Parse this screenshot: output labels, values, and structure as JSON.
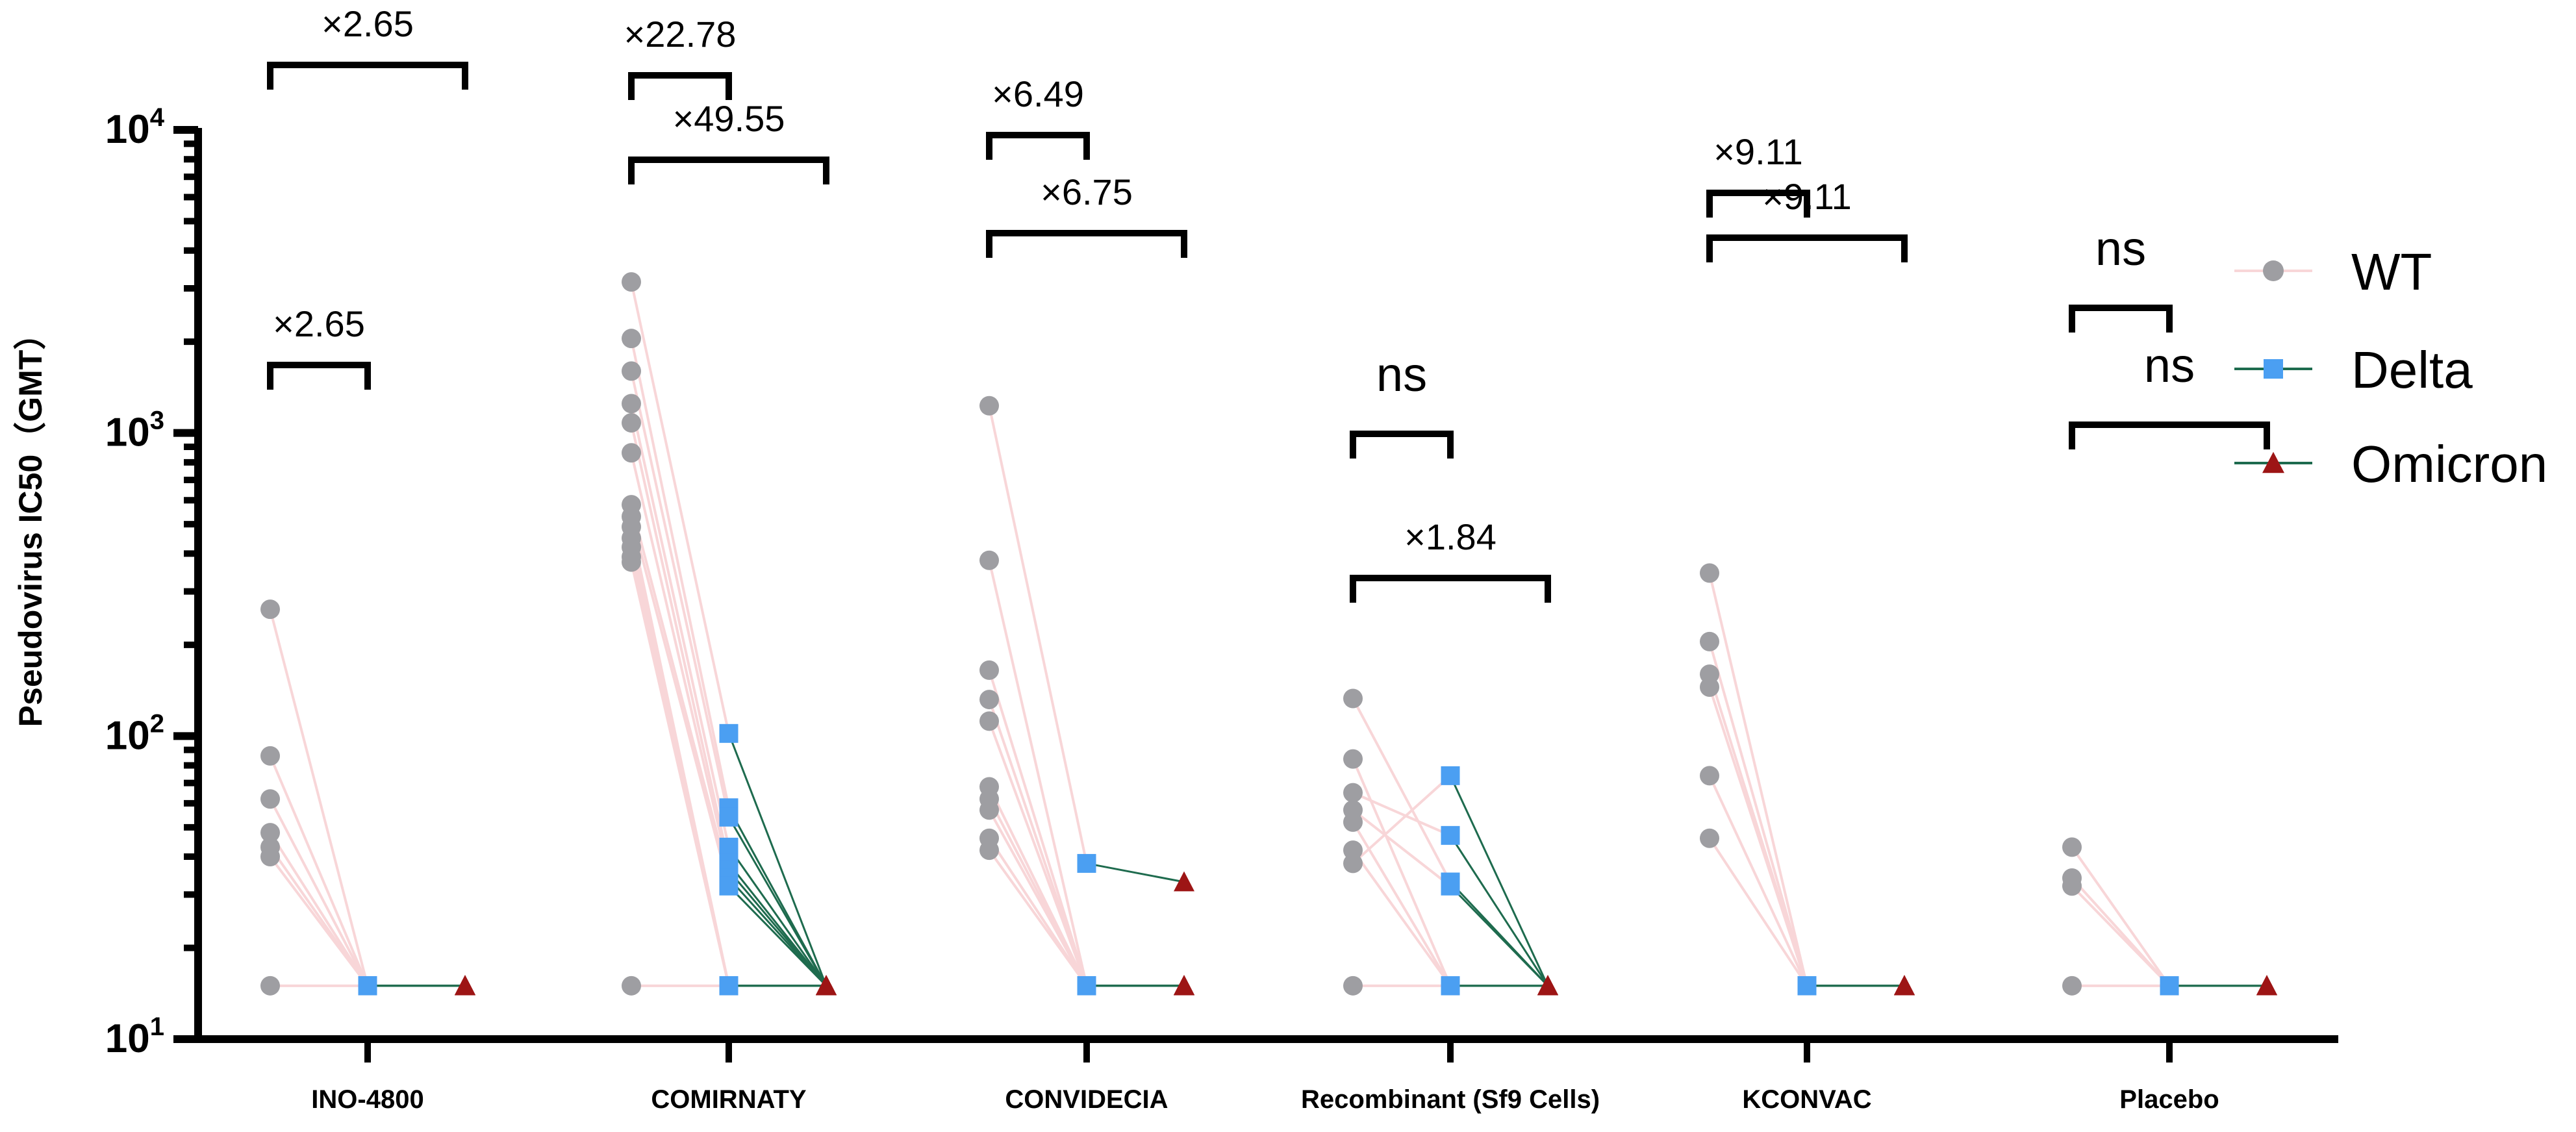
{
  "chart_data": {
    "type": "scatter",
    "subtype": "paired dot plot (before-after)",
    "y_scale": "log10",
    "ylim": [
      10,
      10000
    ],
    "ylabel": "Pseudovirus IC50（GMT）",
    "y_ticks": [
      {
        "base": "10",
        "exp": "1",
        "value": 10
      },
      {
        "base": "10",
        "exp": "2",
        "value": 100
      },
      {
        "base": "10",
        "exp": "3",
        "value": 1000
      },
      {
        "base": "10",
        "exp": "4",
        "value": 10000
      }
    ],
    "categories": [
      "INO-4800",
      "COMIRNATY",
      "CONVIDECIA",
      "Recombinant (Sf9 Cells)",
      "KCONVAC",
      "Placebo"
    ],
    "legend": [
      {
        "name": "WT",
        "marker": "circle",
        "marker_color": "#9e9ea2",
        "line_color": "#f8d6d8"
      },
      {
        "name": "Delta",
        "marker": "square",
        "marker_color": "#4b9ff2",
        "line_color": "#1e6b4e"
      },
      {
        "name": "Omicron",
        "marker": "triangle",
        "marker_color": "#9d1515",
        "line_color": "#1e6b4e"
      }
    ],
    "groups": [
      {
        "name": "INO-4800",
        "wt": [
          262,
          86,
          62,
          48,
          43,
          40,
          15
        ],
        "delta": [
          15,
          15,
          15,
          15,
          15,
          15,
          15
        ],
        "omicron": [
          15,
          15,
          15,
          15,
          15,
          15,
          15
        ],
        "comparisons": [
          {
            "pair": [
              "WT",
              "Delta"
            ],
            "label": "×2.65"
          },
          {
            "pair": [
              "WT",
              "Omicron"
            ],
            "label": "×2.65"
          }
        ]
      },
      {
        "name": "COMIRNATY",
        "wt": [
          3150,
          2050,
          1600,
          1250,
          1080,
          860,
          580,
          530,
          490,
          450,
          420,
          390,
          375,
          15
        ],
        "delta": [
          102,
          58,
          54,
          43,
          38,
          36,
          34,
          32,
          15,
          15,
          15,
          15,
          15,
          15
        ],
        "omicron": [
          15,
          15,
          15,
          15,
          15,
          15,
          15,
          15,
          15,
          15,
          15,
          15,
          15,
          15
        ],
        "comparisons": [
          {
            "pair": [
              "WT",
              "Delta"
            ],
            "label": "×22.78"
          },
          {
            "pair": [
              "WT",
              "Omicron"
            ],
            "label": "×49.55"
          }
        ]
      },
      {
        "name": "CONVIDECIA",
        "wt": [
          1230,
          380,
          165,
          132,
          112,
          68,
          62,
          57,
          46,
          42
        ],
        "delta": [
          38,
          15,
          15,
          15,
          15,
          15,
          15,
          15,
          15,
          15
        ],
        "omicron": [
          33,
          15,
          15,
          15,
          15,
          15,
          15,
          15,
          15,
          15
        ],
        "comparisons": [
          {
            "pair": [
              "WT",
              "Delta"
            ],
            "label": "×6.49"
          },
          {
            "pair": [
              "WT",
              "Omicron"
            ],
            "label": "×6.75"
          }
        ]
      },
      {
        "name": "Recombinant (Sf9 Cells)",
        "wt": [
          133,
          84,
          65,
          57,
          52,
          42,
          38,
          15
        ],
        "delta": [
          33,
          15,
          47,
          32,
          15,
          15,
          74,
          15
        ],
        "omicron": [
          15,
          15,
          15,
          15,
          15,
          15,
          15,
          15
        ],
        "comparisons": [
          {
            "pair": [
              "WT",
              "Delta"
            ],
            "label": "ns"
          },
          {
            "pair": [
              "WT",
              "Omicron"
            ],
            "label": "×1.84"
          }
        ]
      },
      {
        "name": "KCONVAC",
        "wt": [
          345,
          205,
          160,
          145,
          74,
          46
        ],
        "delta": [
          15,
          15,
          15,
          15,
          15,
          15
        ],
        "omicron": [
          15,
          15,
          15,
          15,
          15,
          15
        ],
        "comparisons": [
          {
            "pair": [
              "WT",
              "Delta"
            ],
            "label": "×9.11"
          },
          {
            "pair": [
              "WT",
              "Omicron"
            ],
            "label": "×9.11"
          }
        ]
      },
      {
        "name": "Placebo",
        "wt": [
          43,
          34,
          32,
          15
        ],
        "delta": [
          15,
          15,
          15,
          15
        ],
        "omicron": [
          15,
          15,
          15,
          15
        ],
        "comparisons": [
          {
            "pair": [
              "WT",
              "Delta"
            ],
            "label": "ns"
          },
          {
            "pair": [
              "WT",
              "Omicron"
            ],
            "label": "ns"
          }
        ]
      }
    ]
  }
}
